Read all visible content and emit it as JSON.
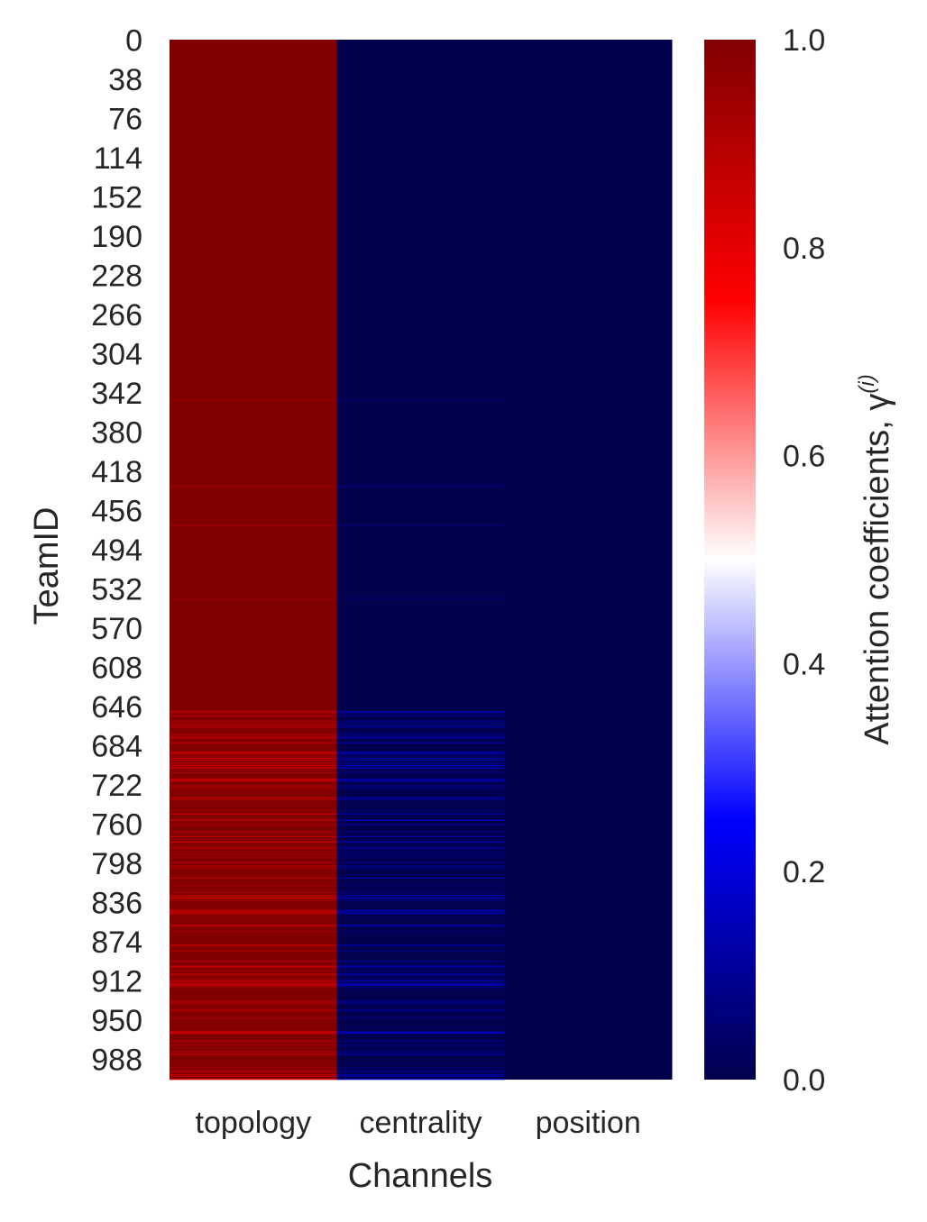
{
  "chart_data": {
    "type": "heatmap",
    "title": "",
    "xlabel": "Channels",
    "ylabel": "TeamID",
    "x_categories": [
      "topology",
      "centrality",
      "position"
    ],
    "y_tick_labels": [
      "0",
      "38",
      "76",
      "114",
      "152",
      "190",
      "228",
      "266",
      "304",
      "342",
      "380",
      "418",
      "456",
      "494",
      "532",
      "570",
      "608",
      "646",
      "684",
      "722",
      "760",
      "798",
      "836",
      "874",
      "912",
      "950",
      "988"
    ],
    "n_rows": 1008,
    "colorbar": {
      "label": "Attention coefficients, γ",
      "label_superscript": "(i)",
      "range": [
        0.0,
        1.0
      ],
      "tick_labels": [
        "0.0",
        "0.2",
        "0.4",
        "0.6",
        "0.8",
        "1.0"
      ],
      "tick_values": [
        0.0,
        0.2,
        0.4,
        0.6,
        0.8,
        1.0
      ],
      "colormap": "seismic",
      "colormap_stops": [
        "#00004d",
        "#0000ff",
        "#ffffff",
        "#ff0000",
        "#800000"
      ]
    },
    "column_summary": [
      {
        "channel": "topology",
        "typical_value": 1.0,
        "row_range_0_to_650": 1.0,
        "row_range_650_to_1008": [
          0.85,
          1.0
        ]
      },
      {
        "channel": "centrality",
        "typical_value": 0.0,
        "row_range_0_to_650": 0.0,
        "row_range_650_to_1008": [
          0.0,
          0.15
        ]
      },
      {
        "channel": "position",
        "typical_value": 0.0,
        "row_range_0_to_1008": 0.0
      }
    ],
    "notable_rows": [
      {
        "team_index": 349,
        "topology": 0.97,
        "centrality": 0.03,
        "position": 0.0
      },
      {
        "team_index": 432,
        "topology": 0.95,
        "centrality": 0.05,
        "position": 0.0
      },
      {
        "team_index": 470,
        "topology": 0.96,
        "centrality": 0.04,
        "position": 0.0
      },
      {
        "team_index": 541,
        "topology": 0.97,
        "centrality": 0.03,
        "position": 0.0
      },
      {
        "team_index": 676,
        "topology": 0.9,
        "centrality": 0.1,
        "position": 0.0
      },
      {
        "team_index": 691,
        "topology": 0.87,
        "centrality": 0.13,
        "position": 0.0
      },
      {
        "team_index": 705,
        "topology": 0.86,
        "centrality": 0.14,
        "position": 0.0
      },
      {
        "team_index": 831,
        "topology": 0.88,
        "centrality": 0.12,
        "position": 0.0
      },
      {
        "team_index": 962,
        "topology": 0.85,
        "centrality": 0.15,
        "position": 0.0
      }
    ]
  }
}
